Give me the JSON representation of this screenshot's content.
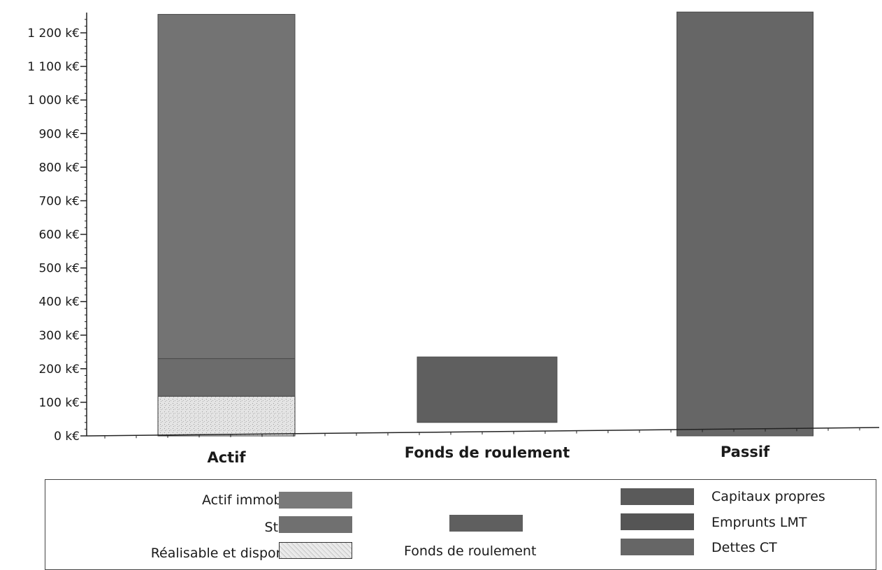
{
  "chart_data": {
    "type": "bar",
    "stacked": true,
    "categories": [
      "Actif",
      "Fonds de roulement",
      "Passif"
    ],
    "y_unit": "k€",
    "ylim": [
      0,
      1250
    ],
    "y_ticks": [
      0,
      100,
      200,
      300,
      400,
      500,
      600,
      700,
      800,
      900,
      1000,
      1100,
      1200
    ],
    "y_tick_labels": [
      "0 k€",
      "100 k€",
      "200 k€",
      "300 k€",
      "400 k€",
      "500 k€",
      "600 k€",
      "700 k€",
      "800 k€",
      "900 k€",
      "1 000 k€",
      "1 100 k€",
      "1 200 k€"
    ],
    "grid": false,
    "legend_position": "bottom",
    "segments": [
      {
        "name": "Réalisable et disponible",
        "category": "Actif",
        "start": 0,
        "end": 118,
        "color": "#d2d2d2",
        "pattern": "speckle"
      },
      {
        "name": "Stocks",
        "category": "Actif",
        "start": 118,
        "end": 230,
        "color": "#6c6c6c"
      },
      {
        "name": "Actif immobilisé",
        "category": "Actif",
        "start": 230,
        "end": 1255,
        "color": "#737373"
      },
      {
        "name": "Fonds de roulement",
        "category": "Fonds de roulement",
        "start": 40,
        "end": 235,
        "color": "#5f5f5f"
      },
      {
        "name": "Dettes CT",
        "category": "Passif",
        "start": 0,
        "end": 0,
        "color": "#6a6a6a"
      },
      {
        "name": "Emprunts LMT",
        "category": "Passif",
        "start": 0,
        "end": 0,
        "color": "#5e5e5e"
      },
      {
        "name": "Capitaux propres",
        "category": "Passif",
        "start": 0,
        "end": 1262,
        "color": "#666666"
      }
    ],
    "legend": {
      "left": [
        {
          "label": "Actif immobilisé",
          "color": "#7a7a7a",
          "pattern": "solid"
        },
        {
          "label": "Stocks",
          "color": "#707070",
          "pattern": "solid"
        },
        {
          "label": "Réalisable et disponible",
          "color": "#d8d8d8",
          "pattern": "speckle"
        }
      ],
      "middle": [
        {
          "label": "Fonds de roulement",
          "color": "#5f5f5f",
          "pattern": "solid"
        }
      ],
      "right": [
        {
          "label": "Capitaux propres",
          "color": "#5a5a5a",
          "pattern": "solid"
        },
        {
          "label": "Emprunts LMT",
          "color": "#555555",
          "pattern": "solid"
        },
        {
          "label": "Dettes CT",
          "color": "#666666",
          "pattern": "solid"
        }
      ]
    }
  }
}
